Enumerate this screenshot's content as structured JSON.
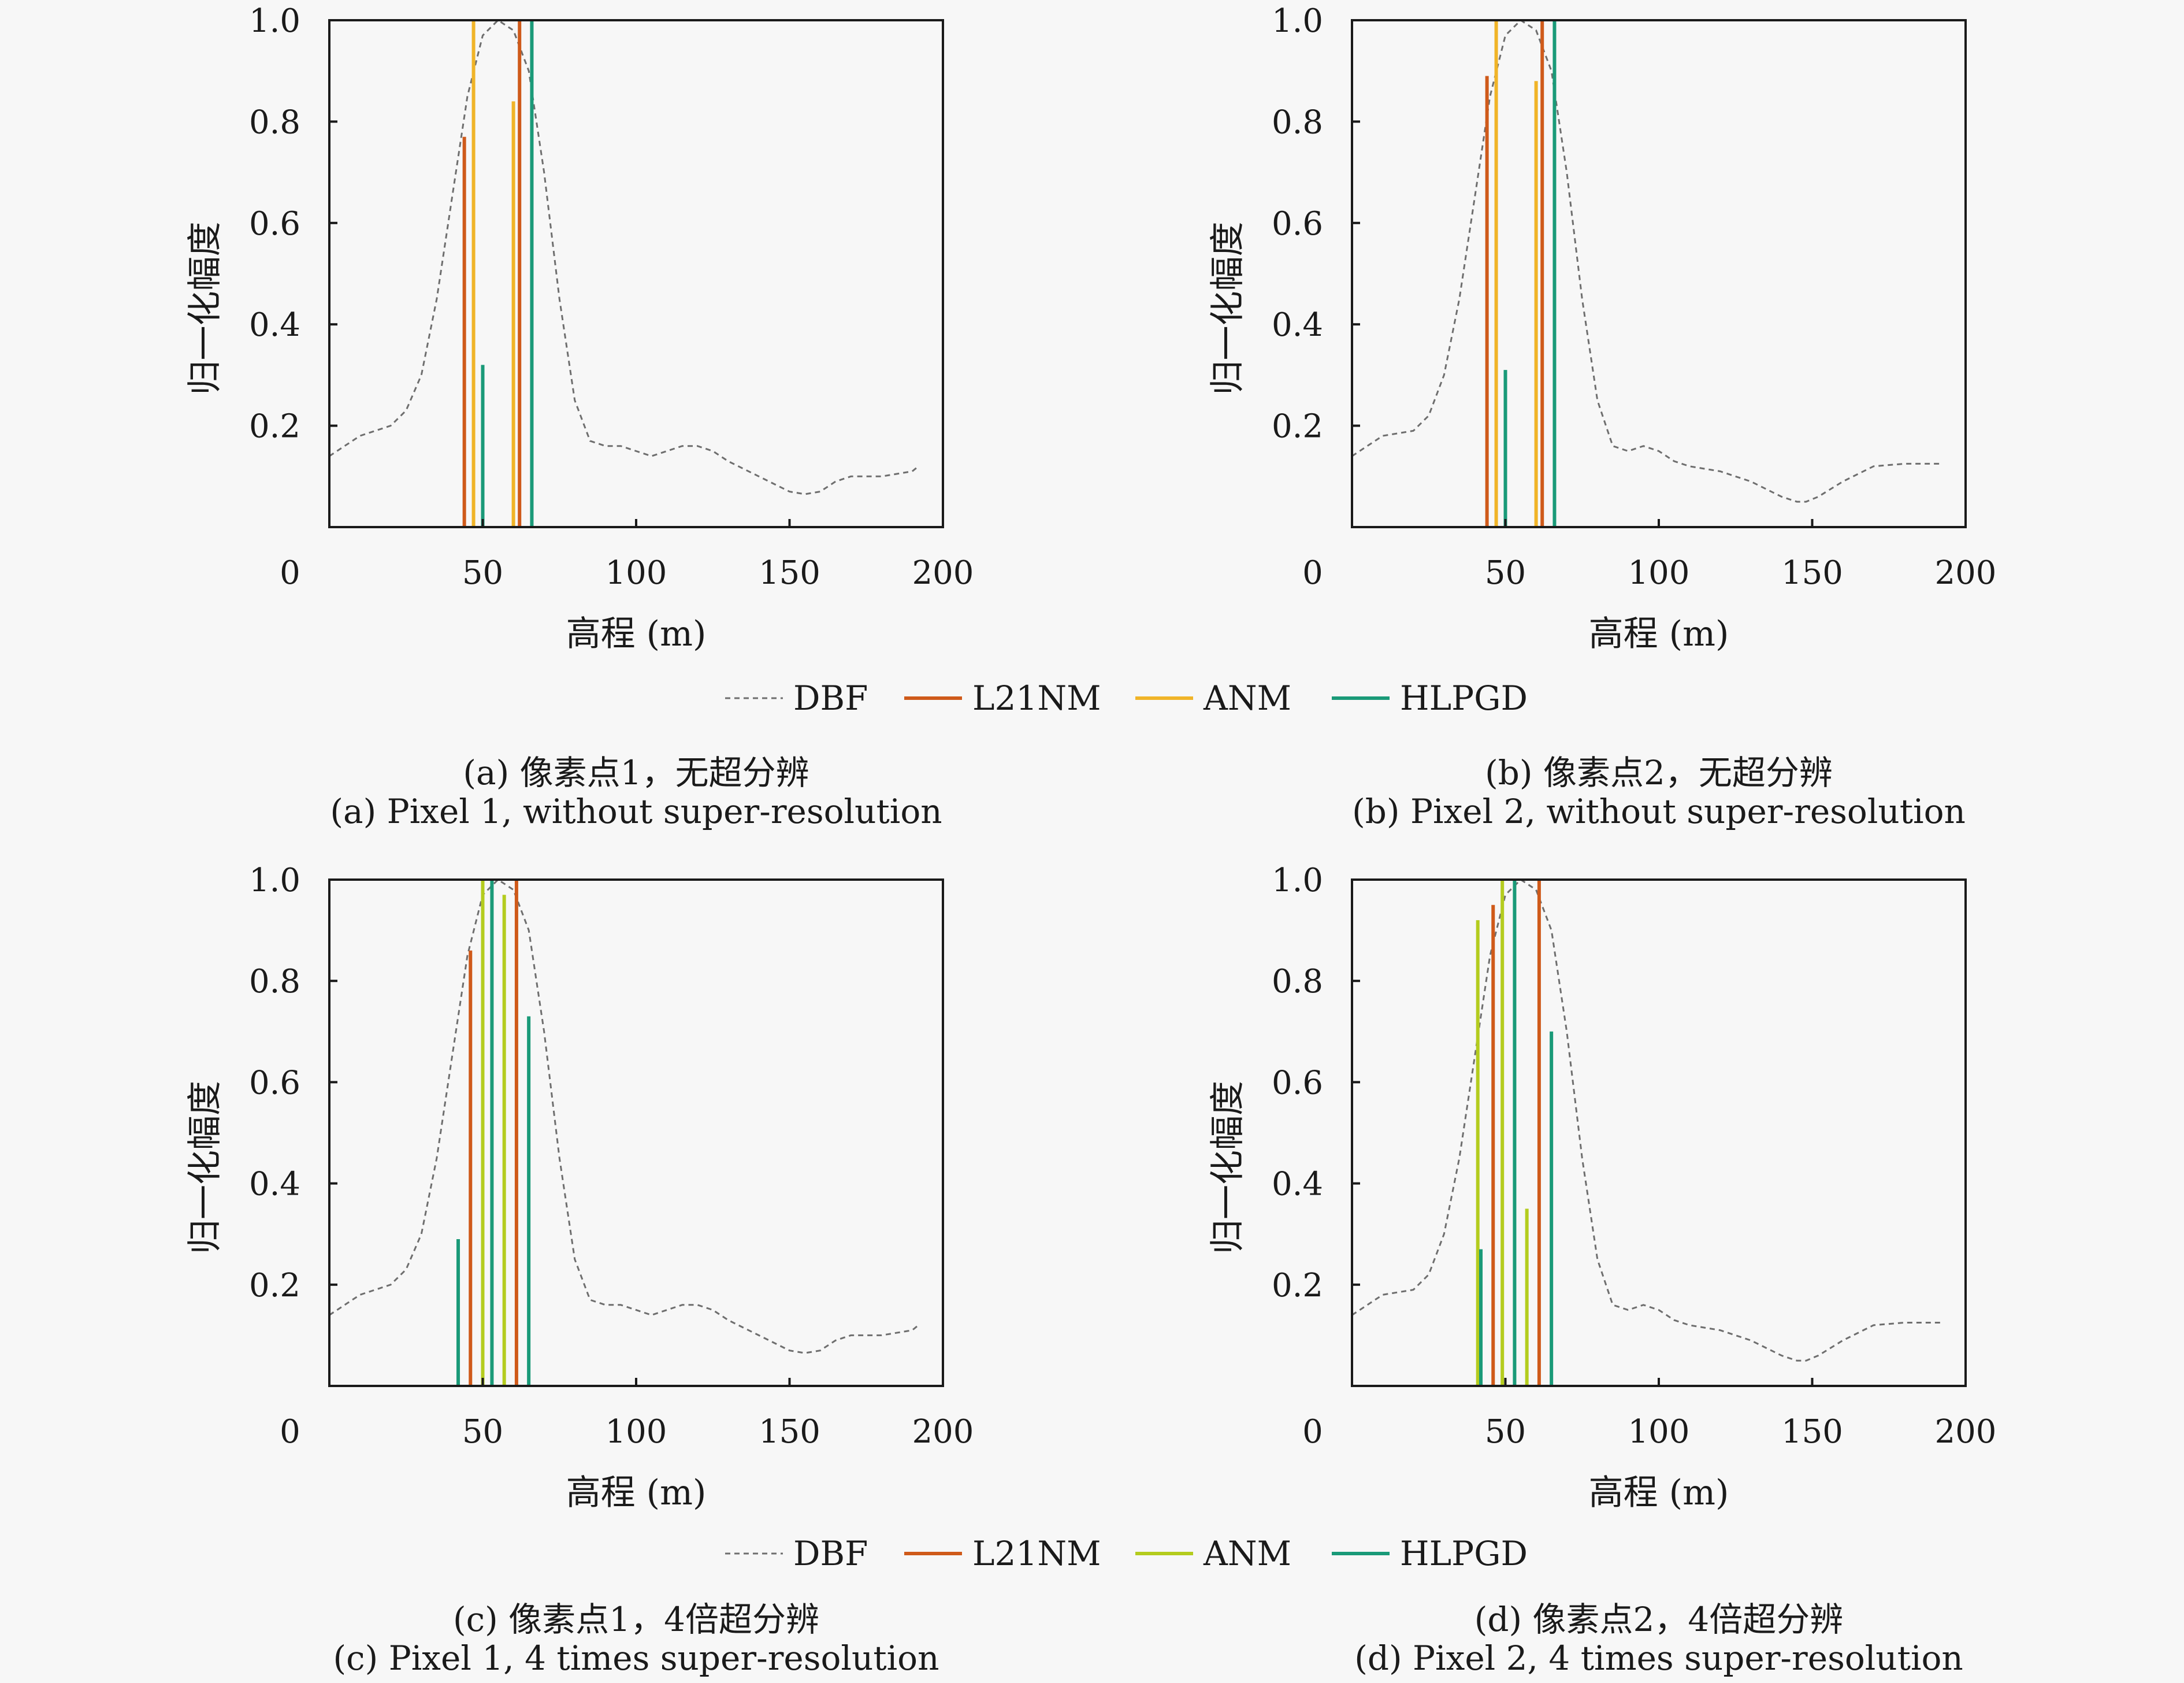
{
  "figure": {
    "legend_top": [
      {
        "label": "DBF",
        "color": "#6e6e6e",
        "dashed": true
      },
      {
        "label": "L21NM",
        "color": "#cf5a1a"
      },
      {
        "label": "ANM",
        "color": "#f0b428"
      },
      {
        "label": "HLPGD",
        "color": "#1a9a78"
      }
    ],
    "legend_bottom": [
      {
        "label": "DBF",
        "color": "#6e6e6e",
        "dashed": true
      },
      {
        "label": "L21NM",
        "color": "#cf5a1a"
      },
      {
        "label": "ANM",
        "color": "#b4cc1e"
      },
      {
        "label": "HLPGD",
        "color": "#1a9a78"
      }
    ],
    "captions": {
      "a_cn": "(a) 像素点1，无超分辨",
      "a_en": "(a) Pixel 1, without super-resolution",
      "b_cn": "(b) 像素点2，无超分辨",
      "b_en": "(b) Pixel 2, without super-resolution",
      "c_cn": "(c) 像素点1，4倍超分辨",
      "c_en": "(c) Pixel 1, 4 times super-resolution",
      "d_cn": "(d) 像素点2，4倍超分辨",
      "d_en": "(d) Pixel 2, 4 times super-resolution"
    }
  },
  "chart_data": [
    {
      "id": "a",
      "type": "line",
      "xlabel": "高程 (m)",
      "ylabel": "归一化幅度",
      "xlim": [
        0,
        200
      ],
      "ylim": [
        0,
        1.0
      ],
      "xticks": [
        "0",
        "50",
        "100",
        "150",
        "200"
      ],
      "yticks": [
        "0.2",
        "0.4",
        "0.6",
        "0.8",
        "1.0"
      ],
      "series": [
        {
          "name": "DBF",
          "color": "#6e6e6e",
          "style": "dashed",
          "x": [
            0,
            10,
            20,
            25,
            30,
            35,
            40,
            45,
            50,
            55,
            60,
            65,
            70,
            75,
            80,
            85,
            90,
            95,
            100,
            105,
            110,
            115,
            120,
            125,
            130,
            140,
            150,
            155,
            160,
            165,
            170,
            180,
            190,
            192
          ],
          "y": [
            0.14,
            0.18,
            0.2,
            0.23,
            0.3,
            0.45,
            0.65,
            0.85,
            0.97,
            1.0,
            0.98,
            0.9,
            0.7,
            0.45,
            0.25,
            0.17,
            0.16,
            0.16,
            0.15,
            0.14,
            0.15,
            0.16,
            0.16,
            0.15,
            0.13,
            0.1,
            0.07,
            0.065,
            0.07,
            0.09,
            0.1,
            0.1,
            0.11,
            0.12
          ]
        },
        {
          "name": "L21NM",
          "color": "#cf5a1a",
          "style": "stem",
          "x": [
            44,
            62
          ],
          "y": [
            0.77,
            1.0
          ]
        },
        {
          "name": "ANM",
          "color": "#f0b428",
          "style": "stem",
          "x": [
            47,
            60
          ],
          "y": [
            1.0,
            0.84
          ]
        },
        {
          "name": "HLPGD",
          "color": "#1a9a78",
          "style": "stem",
          "x": [
            50,
            66
          ],
          "y": [
            0.32,
            1.0
          ]
        }
      ]
    },
    {
      "id": "b",
      "type": "line",
      "xlabel": "高程 (m)",
      "ylabel": "归一化幅度",
      "xlim": [
        0,
        200
      ],
      "ylim": [
        0,
        1.0
      ],
      "xticks": [
        "0",
        "50",
        "100",
        "150",
        "200"
      ],
      "yticks": [
        "0.2",
        "0.4",
        "0.6",
        "0.8",
        "1.0"
      ],
      "series": [
        {
          "name": "DBF",
          "color": "#6e6e6e",
          "style": "dashed",
          "x": [
            0,
            10,
            20,
            25,
            30,
            35,
            40,
            45,
            50,
            55,
            60,
            65,
            70,
            75,
            80,
            85,
            90,
            95,
            100,
            105,
            110,
            120,
            130,
            140,
            145,
            148,
            152,
            160,
            170,
            180,
            190,
            192
          ],
          "y": [
            0.14,
            0.18,
            0.19,
            0.22,
            0.3,
            0.45,
            0.65,
            0.85,
            0.97,
            1.0,
            0.98,
            0.9,
            0.7,
            0.45,
            0.25,
            0.16,
            0.15,
            0.16,
            0.15,
            0.13,
            0.12,
            0.11,
            0.09,
            0.06,
            0.05,
            0.05,
            0.06,
            0.09,
            0.12,
            0.125,
            0.125,
            0.125
          ]
        },
        {
          "name": "L21NM",
          "color": "#cf5a1a",
          "style": "stem",
          "x": [
            44,
            62
          ],
          "y": [
            0.89,
            1.0
          ]
        },
        {
          "name": "ANM",
          "color": "#f0b428",
          "style": "stem",
          "x": [
            47,
            60
          ],
          "y": [
            1.0,
            0.88
          ]
        },
        {
          "name": "HLPGD",
          "color": "#1a9a78",
          "style": "stem",
          "x": [
            50,
            66
          ],
          "y": [
            0.31,
            1.0
          ]
        }
      ]
    },
    {
      "id": "c",
      "type": "line",
      "xlabel": "高程 (m)",
      "ylabel": "归一化幅度",
      "xlim": [
        0,
        200
      ],
      "ylim": [
        0,
        1.0
      ],
      "xticks": [
        "0",
        "50",
        "100",
        "150",
        "200"
      ],
      "yticks": [
        "0.2",
        "0.4",
        "0.6",
        "0.8",
        "1.0"
      ],
      "series": [
        {
          "name": "DBF",
          "color": "#6e6e6e",
          "style": "dashed",
          "x": [
            0,
            10,
            20,
            25,
            30,
            35,
            40,
            45,
            50,
            55,
            60,
            65,
            70,
            75,
            80,
            85,
            90,
            95,
            100,
            105,
            110,
            115,
            120,
            125,
            130,
            140,
            150,
            155,
            160,
            165,
            170,
            180,
            190,
            192
          ],
          "y": [
            0.14,
            0.18,
            0.2,
            0.23,
            0.3,
            0.45,
            0.65,
            0.85,
            0.97,
            1.0,
            0.98,
            0.9,
            0.7,
            0.45,
            0.25,
            0.17,
            0.16,
            0.16,
            0.15,
            0.14,
            0.15,
            0.16,
            0.16,
            0.15,
            0.13,
            0.1,
            0.07,
            0.065,
            0.07,
            0.09,
            0.1,
            0.1,
            0.11,
            0.12
          ]
        },
        {
          "name": "L21NM",
          "color": "#cf5a1a",
          "style": "stem",
          "x": [
            46,
            61
          ],
          "y": [
            0.86,
            1.0
          ]
        },
        {
          "name": "ANM",
          "color": "#b4cc1e",
          "style": "stem",
          "x": [
            50,
            57
          ],
          "y": [
            1.0,
            0.97
          ]
        },
        {
          "name": "HLPGD",
          "color": "#1a9a78",
          "style": "stem",
          "x": [
            42,
            53,
            65
          ],
          "y": [
            0.29,
            1.0,
            0.73
          ]
        }
      ]
    },
    {
      "id": "d",
      "type": "line",
      "xlabel": "高程 (m)",
      "ylabel": "归一化幅度",
      "xlim": [
        0,
        200
      ],
      "ylim": [
        0,
        1.0
      ],
      "xticks": [
        "0",
        "50",
        "100",
        "150",
        "200"
      ],
      "yticks": [
        "0.2",
        "0.4",
        "0.6",
        "0.8",
        "1.0"
      ],
      "series": [
        {
          "name": "DBF",
          "color": "#6e6e6e",
          "style": "dashed",
          "x": [
            0,
            10,
            20,
            25,
            30,
            35,
            40,
            45,
            50,
            55,
            60,
            65,
            70,
            75,
            80,
            85,
            90,
            95,
            100,
            105,
            110,
            120,
            130,
            140,
            145,
            148,
            152,
            160,
            170,
            180,
            190,
            192
          ],
          "y": [
            0.14,
            0.18,
            0.19,
            0.22,
            0.3,
            0.45,
            0.65,
            0.85,
            0.97,
            1.0,
            0.98,
            0.9,
            0.7,
            0.45,
            0.25,
            0.16,
            0.15,
            0.16,
            0.15,
            0.13,
            0.12,
            0.11,
            0.09,
            0.06,
            0.05,
            0.05,
            0.06,
            0.09,
            0.12,
            0.125,
            0.125,
            0.125
          ]
        },
        {
          "name": "L21NM",
          "color": "#cf5a1a",
          "style": "stem",
          "x": [
            46,
            61
          ],
          "y": [
            0.95,
            1.0
          ]
        },
        {
          "name": "ANM",
          "color": "#b4cc1e",
          "style": "stem",
          "x": [
            41,
            49,
            57
          ],
          "y": [
            0.92,
            1.0,
            0.35
          ]
        },
        {
          "name": "HLPGD",
          "color": "#1a9a78",
          "style": "stem",
          "x": [
            42,
            53,
            65
          ],
          "y": [
            0.27,
            1.0,
            0.7
          ]
        }
      ]
    }
  ]
}
